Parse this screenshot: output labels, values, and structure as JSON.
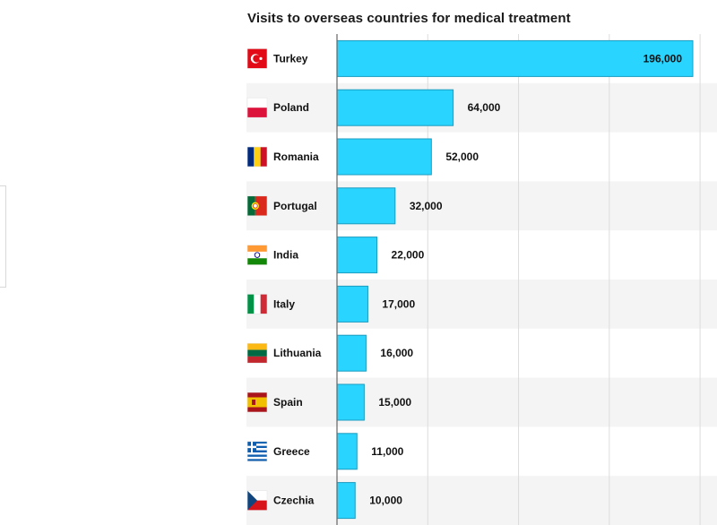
{
  "chart_data": {
    "type": "bar",
    "orientation": "horizontal",
    "title": "Visits to overseas countries for medical treatment",
    "categories": [
      "Turkey",
      "Poland",
      "Romania",
      "Portugal",
      "India",
      "Italy",
      "Lithuania",
      "Spain",
      "Greece",
      "Czechia"
    ],
    "values": [
      196000,
      64000,
      52000,
      32000,
      22000,
      17000,
      16000,
      15000,
      11000,
      10000
    ],
    "value_labels": [
      "196,000",
      "64,000",
      "52,000",
      "32,000",
      "22,000",
      "17,000",
      "16,000",
      "15,000",
      "11,000",
      "10,000"
    ],
    "xlim": [
      0,
      210000
    ],
    "grid": true,
    "bar_color": "#29d4ff",
    "bar_border_color": "#1a9cc0",
    "row_band_color": "#f4f4f4",
    "flag_icons": [
      "turkey-flag-icon",
      "poland-flag-icon",
      "romania-flag-icon",
      "portugal-flag-icon",
      "india-flag-icon",
      "italy-flag-icon",
      "lithuania-flag-icon",
      "spain-flag-icon",
      "greece-flag-icon",
      "czechia-flag-icon"
    ]
  }
}
